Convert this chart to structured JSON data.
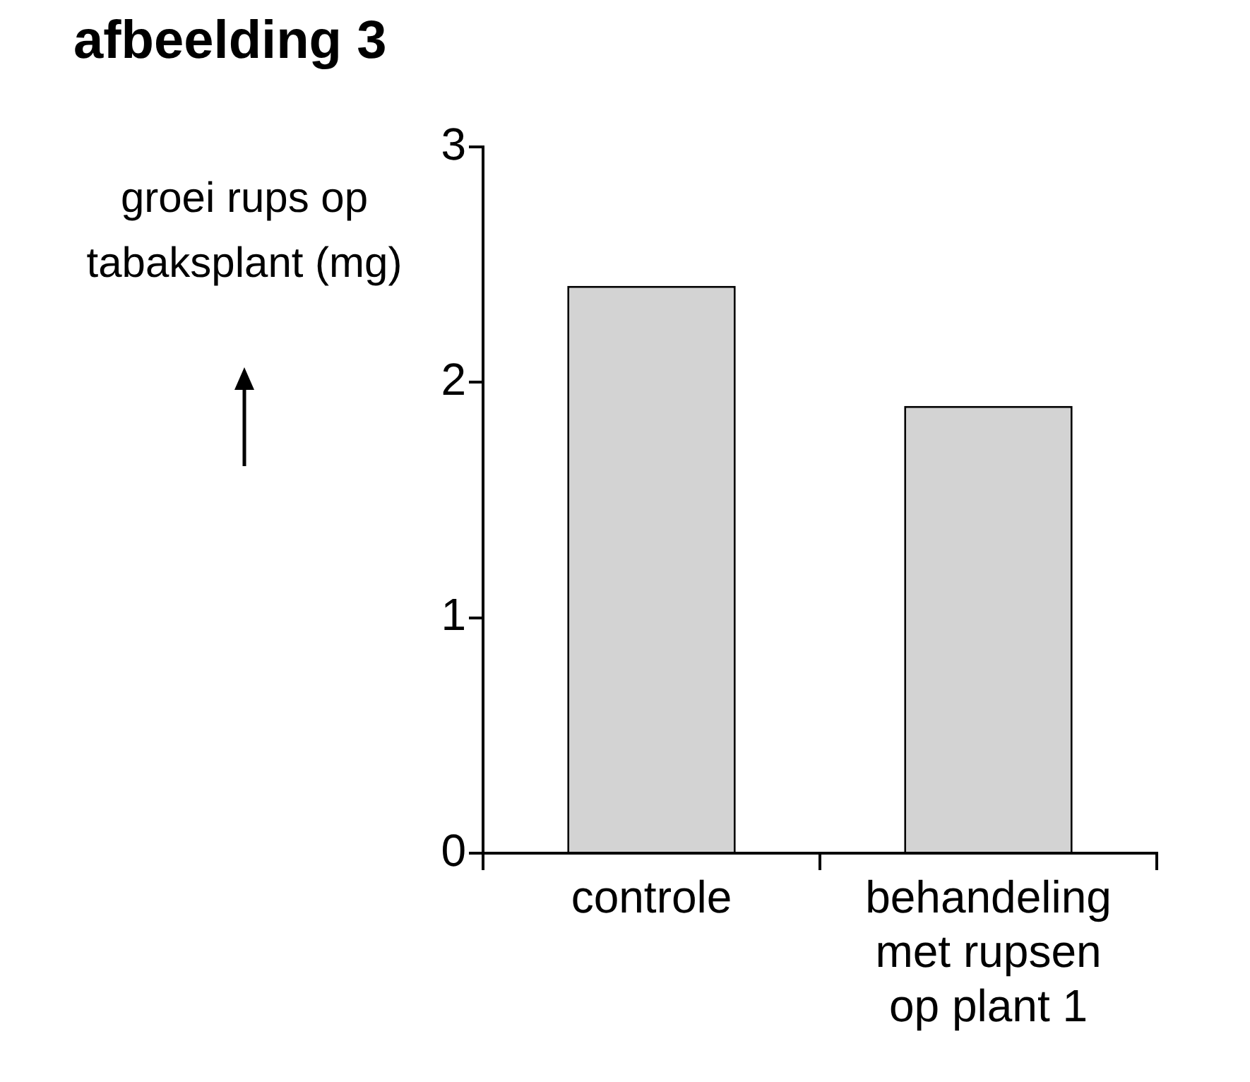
{
  "chart_data": {
    "type": "bar",
    "title": "afbeelding 3",
    "ylabel": "groei rups op tabaksplant (mg)",
    "categories": [
      "controle",
      "behandeling met rupsen op plant 1"
    ],
    "values": [
      2.41,
      1.9
    ],
    "color": "#d3d3d3",
    "ylim": [
      0,
      3
    ],
    "yticks": [
      0,
      1,
      2,
      3
    ],
    "grid": false,
    "legend": false
  }
}
